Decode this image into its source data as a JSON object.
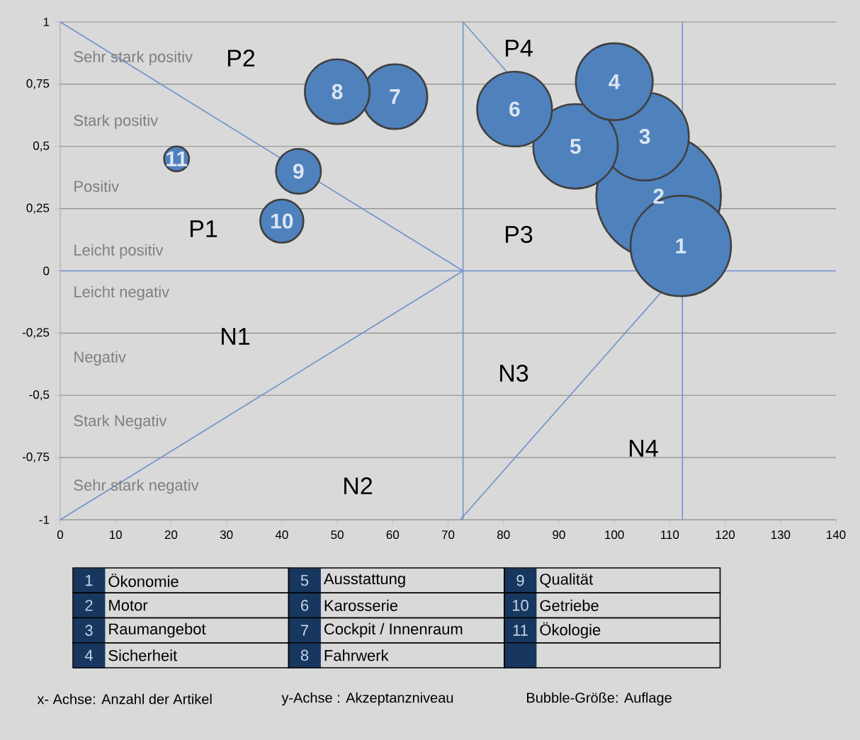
{
  "chart_data": {
    "type": "bubble",
    "xlim": [
      0,
      140
    ],
    "ylim": [
      -1,
      1
    ],
    "xticks": [
      0,
      10,
      20,
      30,
      40,
      50,
      60,
      70,
      80,
      90,
      100,
      110,
      120,
      130,
      140
    ],
    "yticks": [
      -1,
      {
        "value": -0.75,
        "label": "-0,75"
      },
      {
        "value": -0.5,
        "label": "-0,5"
      },
      {
        "value": -0.25,
        "label": "-0,25"
      },
      0,
      {
        "value": 0.25,
        "label": "0,25"
      },
      {
        "value": 0.5,
        "label": "0,5"
      },
      {
        "value": 0.75,
        "label": "0,75"
      },
      1
    ],
    "grid": "y",
    "series": [
      {
        "color": "#4f81bd",
        "x": [
          112
        ],
        "values": [
          0.1
        ],
        "sizes": [
          0.65
        ]
      },
      {
        "color": "#4f81bd",
        "x": [
          108
        ],
        "values": [
          0.3
        ],
        "sizes": [
          1
        ]
      },
      {
        "color": "#4f81bd",
        "x": [
          105.5
        ],
        "values": [
          0.54
        ],
        "sizes": [
          0.5
        ]
      },
      {
        "color": "#4f81bd",
        "x": [
          100
        ],
        "values": [
          0.76
        ],
        "sizes": [
          0.38
        ]
      },
      {
        "color": "#4f81bd",
        "x": [
          93
        ],
        "values": [
          0.5
        ],
        "sizes": [
          0.46
        ]
      },
      {
        "color": "#4f81bd",
        "x": [
          82
        ],
        "values": [
          0.65
        ],
        "sizes": [
          0.36
        ]
      },
      {
        "color": "#4f81bd",
        "x": [
          60.4
        ],
        "values": [
          0.7
        ],
        "sizes": [
          0.27
        ]
      },
      {
        "color": "#4f81bd",
        "x": [
          50
        ],
        "values": [
          0.72
        ],
        "sizes": [
          0.27
        ]
      },
      {
        "color": "#4f81bd",
        "x": [
          43
        ],
        "values": [
          0.4
        ],
        "sizes": [
          0.13
        ]
      },
      {
        "color": "#4f81bd",
        "x": [
          40
        ],
        "values": [
          0.2
        ],
        "sizes": [
          0.12
        ]
      },
      {
        "color": "#4f81bd",
        "x": [
          21
        ],
        "values": [
          0.45
        ],
        "sizes": [
          0.04
        ]
      },
      {
        "type": "line",
        "color": "#6f93cc",
        "x": [
          0,
          72.7
        ],
        "values": [
          1,
          0
        ]
      },
      {
        "type": "line",
        "color": "#6f93cc",
        "x": [
          0,
          72.7
        ],
        "values": [
          -1,
          0
        ]
      },
      {
        "type": "line",
        "color": "#6f93cc",
        "x": [
          72.7,
          80.6
        ],
        "values": [
          1,
          0.8
        ]
      },
      {
        "type": "line",
        "color": "#6f93cc",
        "x": [
          72.2,
          108.7
        ],
        "values": [
          -1,
          -0.08
        ]
      }
    ],
    "ref_lines": [
      {
        "axis": "y",
        "value": 0,
        "color": "#6f93cc"
      },
      {
        "axis": "x",
        "value": 72.7,
        "color": "#6f93cc"
      },
      {
        "axis": "x",
        "value": 112.3,
        "color": "#6f93cc"
      }
    ],
    "annotations": [
      {
        "text": "1",
        "x": 112,
        "y": 0.1
      },
      {
        "text": "2",
        "x": 108,
        "y": 0.3
      },
      {
        "text": "3",
        "x": 105.5,
        "y": 0.54
      },
      {
        "text": "4",
        "x": 100,
        "y": 0.76
      },
      {
        "text": "5",
        "x": 93,
        "y": 0.5
      },
      {
        "text": "6",
        "x": 82,
        "y": 0.65
      },
      {
        "text": "7",
        "x": 60.4,
        "y": 0.7
      },
      {
        "text": "8",
        "x": 50,
        "y": 0.72
      },
      {
        "text": "9",
        "x": 43,
        "y": 0.4
      },
      {
        "text": "10",
        "x": 40,
        "y": 0.2
      },
      {
        "text": "11",
        "x": 21,
        "y": 0.45
      },
      "Sehr stark positiv",
      "Stark positiv",
      "Positiv",
      "Leicht positiv",
      "Leicht negativ",
      "Negativ",
      "Stark Negativ",
      "Sehr stark negativ",
      "P1",
      "P2",
      "P3",
      "P4",
      "N1",
      "N2",
      "N3",
      "N4",
      "1",
      "2",
      "3",
      "4",
      "5",
      "6",
      "7",
      "8",
      "9",
      "10",
      "11",
      "Ökonomie",
      "Motor",
      "Raumangebot",
      "Sicherheit",
      "Ausstattung",
      "Karosserie",
      "Cockpit / Innenraum",
      "Fahrwerk",
      "Qualität",
      "Getriebe",
      "Ökologie",
      "x- Achse: Anzahl der Artikel",
      "y-Achse : Akzeptanzniveau",
      "Bubble-Größe: Auflage"
    ]
  }
}
